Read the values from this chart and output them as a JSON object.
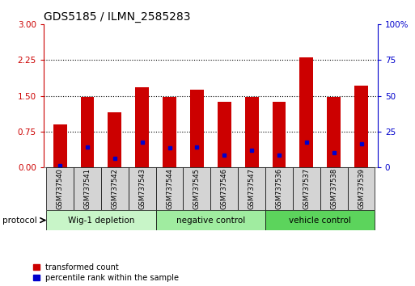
{
  "title": "GDS5185 / ILMN_2585283",
  "samples": [
    "GSM737540",
    "GSM737541",
    "GSM737542",
    "GSM737543",
    "GSM737544",
    "GSM737545",
    "GSM737546",
    "GSM737547",
    "GSM737536",
    "GSM737537",
    "GSM737538",
    "GSM737539"
  ],
  "red_values": [
    0.9,
    1.48,
    1.15,
    1.68,
    1.48,
    1.63,
    1.38,
    1.48,
    1.38,
    2.3,
    1.48,
    1.72
  ],
  "blue_values_left": [
    0.04,
    0.43,
    0.18,
    0.52,
    0.4,
    0.43,
    0.25,
    0.36,
    0.25,
    0.53,
    0.3,
    0.5
  ],
  "groups": [
    {
      "label": "Wig-1 depletion",
      "start": 0,
      "end": 4,
      "color": "#c8f5c8"
    },
    {
      "label": "negative control",
      "start": 4,
      "end": 8,
      "color": "#a0eca0"
    },
    {
      "label": "vehicle control",
      "start": 8,
      "end": 12,
      "color": "#5cd45c"
    }
  ],
  "ylim_left": [
    0,
    3
  ],
  "ylim_right": [
    0,
    100
  ],
  "yticks_left": [
    0,
    0.75,
    1.5,
    2.25,
    3
  ],
  "yticks_right": [
    0,
    25,
    50,
    75,
    100
  ],
  "bar_color": "#cc0000",
  "marker_color": "#0000cc",
  "bar_width": 0.5,
  "background_color": "#ffffff",
  "left_axis_color": "#cc0000",
  "right_axis_color": "#0000cc",
  "legend_red": "transformed count",
  "legend_blue": "percentile rank within the sample",
  "protocol_label": "protocol",
  "sample_box_color": "#d4d4d4",
  "n_samples": 12
}
